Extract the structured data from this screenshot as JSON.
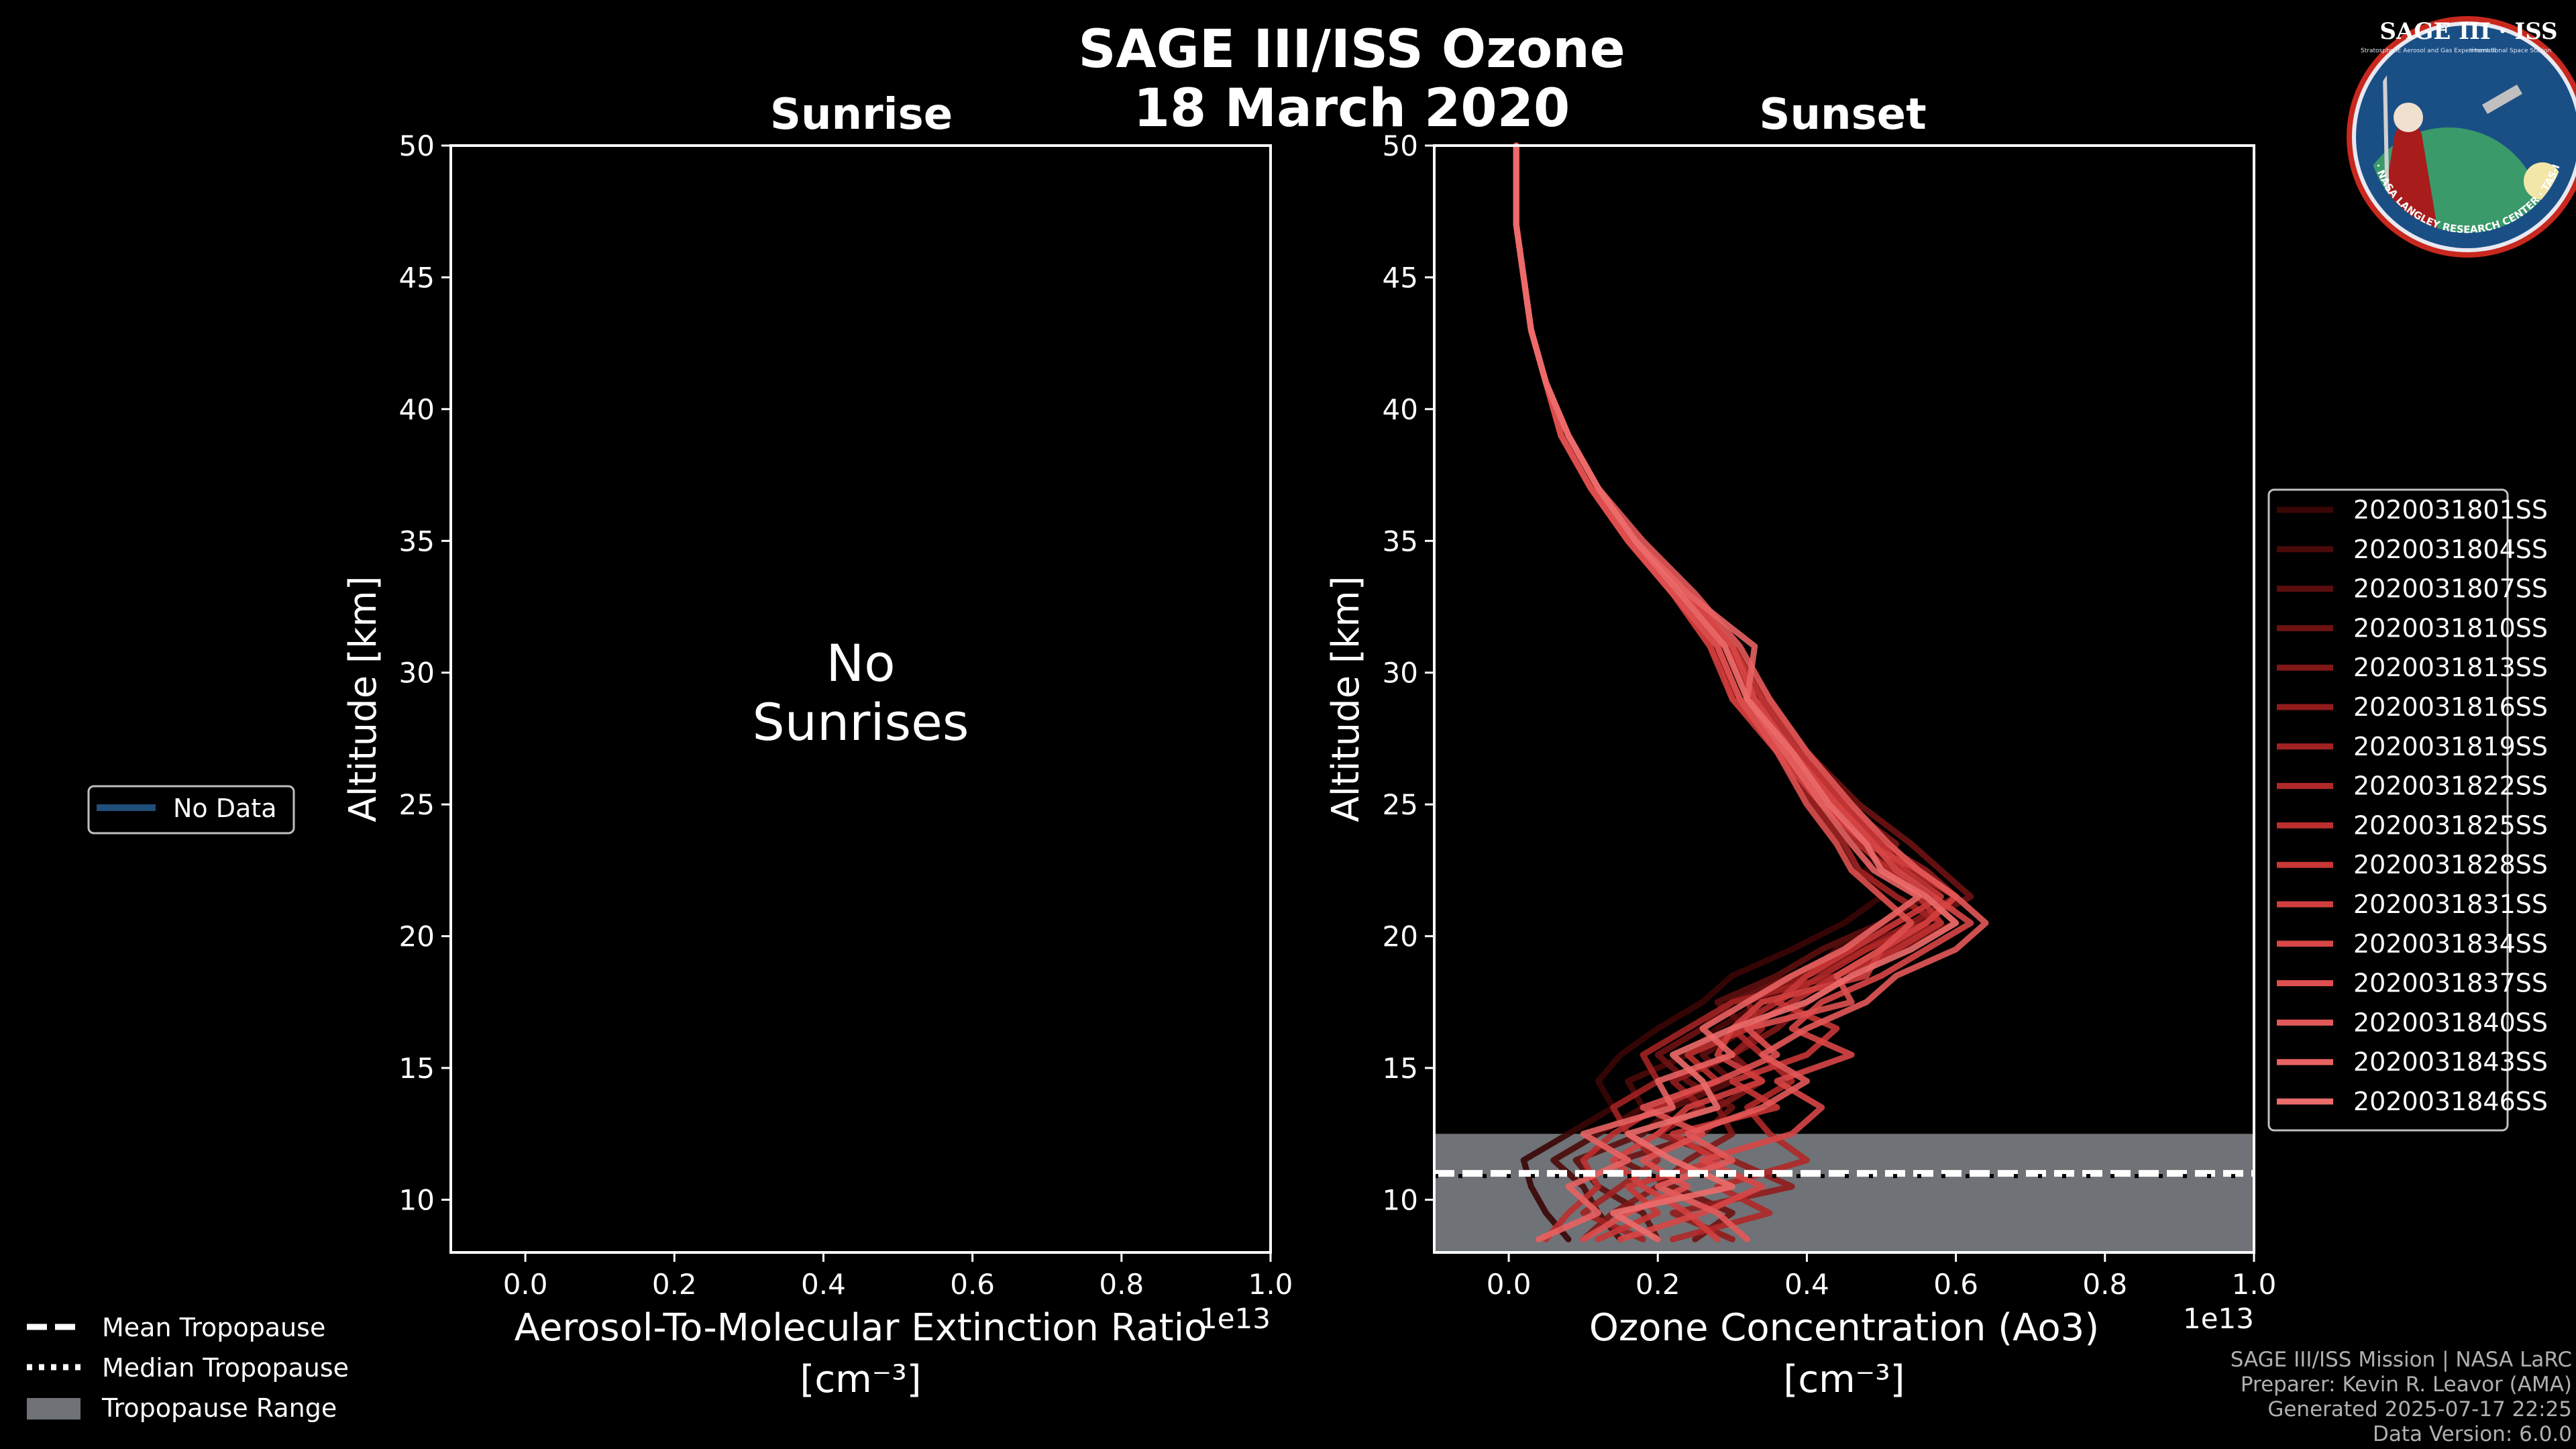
{
  "figure": {
    "title_line1": "SAGE III/ISS Ozone",
    "title_line2": "18 March 2020",
    "footer": [
      "SAGE III/ISS Mission | NASA LaRC",
      "Preparer: Kevin R. Leavor (AMA)",
      "Generated 2025-07-17 22:25",
      "Data Version: 6.0.0"
    ],
    "logo": {
      "text_top": "SAGE III · ISS",
      "text_small_left": "Stratospheric Aerosol and Gas Experiment III",
      "text_small_right": "International Space Station",
      "ring_text": "BALL · NASA LANGLEY RESEARCH CENTER · TAS-I · ESA"
    },
    "left_legend": {
      "no_data": "No Data"
    },
    "bottom_legend": {
      "mean": "Mean Tropopause",
      "median": "Median Tropopause",
      "range": "Tropopause Range"
    }
  },
  "chart_data": [
    {
      "type": "line",
      "panel": "sunrise",
      "title": "Sunrise",
      "xlabel_line1": "Aerosol-To-Molecular Extinction Ratio",
      "xlabel_line2": "[cm⁻³]",
      "ylabel": "Altitude [km]",
      "xlim": [
        -0.1,
        1.0
      ],
      "ylim": [
        8,
        50
      ],
      "xticks": [
        "0.0",
        "0.2",
        "0.4",
        "0.6",
        "0.8",
        "1.0"
      ],
      "xtick_values": [
        0.0,
        0.2,
        0.4,
        0.6,
        0.8,
        1.0
      ],
      "yticks": [
        "10",
        "15",
        "20",
        "25",
        "30",
        "35",
        "40",
        "45",
        "50"
      ],
      "ytick_values": [
        10,
        15,
        20,
        25,
        30,
        35,
        40,
        45,
        50
      ],
      "offset_text": "1e13",
      "message_line1": "No",
      "message_line2": "Sunrises",
      "series": []
    },
    {
      "type": "line",
      "panel": "sunset",
      "title": "Sunset",
      "xlabel_line1": "Ozone Concentration (Ao3)",
      "xlabel_line2": "[cm⁻³]",
      "ylabel": "Altitude [km]",
      "xlim": [
        -0.1,
        1.0
      ],
      "ylim": [
        8,
        50
      ],
      "xticks": [
        "0.0",
        "0.2",
        "0.4",
        "0.6",
        "0.8",
        "1.0"
      ],
      "xtick_values": [
        0.0,
        0.2,
        0.4,
        0.6,
        0.8,
        1.0
      ],
      "yticks": [
        "10",
        "15",
        "20",
        "25",
        "30",
        "35",
        "40",
        "45",
        "50"
      ],
      "ytick_values": [
        10,
        15,
        20,
        25,
        30,
        35,
        40,
        45,
        50
      ],
      "offset_text": "1e13",
      "tropopause": {
        "mean": 11.0,
        "median": 10.9,
        "range": [
          8,
          12.5
        ]
      },
      "profile_altitudes": [
        8.5,
        9.5,
        10.5,
        11.5,
        12.5,
        13.5,
        14.5,
        15.5,
        16.5,
        17.5,
        18.5,
        19.5,
        20.5,
        21.5,
        22.5,
        23.5,
        25,
        27,
        29,
        31,
        33,
        35,
        37,
        39,
        41,
        43,
        45,
        47,
        50
      ],
      "series": [
        {
          "name": "2020031801SS",
          "color": "#3a0606",
          "values": [
            0.08,
            0.05,
            0.03,
            0.02,
            0.08,
            0.14,
            0.12,
            0.15,
            0.2,
            0.26,
            0.3,
            0.38,
            0.45,
            0.5,
            0.48,
            0.5,
            0.42,
            0.38,
            0.33,
            0.28,
            0.22,
            0.16,
            0.11,
            0.07,
            0.05,
            0.03,
            0.02,
            0.01,
            0.01
          ]
        },
        {
          "name": "2020031804SS",
          "color": "#4a0a0a",
          "values": [
            0.15,
            0.12,
            0.1,
            0.06,
            0.12,
            0.18,
            0.16,
            0.24,
            0.28,
            0.34,
            0.4,
            0.44,
            0.52,
            0.58,
            0.55,
            0.5,
            0.46,
            0.4,
            0.34,
            0.3,
            0.23,
            0.17,
            0.12,
            0.08,
            0.05,
            0.03,
            0.02,
            0.01,
            0.01
          ]
        },
        {
          "name": "2020031807SS",
          "color": "#5c0e0e",
          "values": [
            0.2,
            0.18,
            0.12,
            0.09,
            0.18,
            0.22,
            0.3,
            0.26,
            0.32,
            0.28,
            0.36,
            0.42,
            0.5,
            0.56,
            0.52,
            0.48,
            0.44,
            0.38,
            0.32,
            0.29,
            0.22,
            0.16,
            0.11,
            0.07,
            0.05,
            0.03,
            0.02,
            0.01,
            0.01
          ]
        },
        {
          "name": "2020031810SS",
          "color": "#6e1212",
          "values": [
            0.25,
            0.3,
            0.22,
            0.15,
            0.26,
            0.3,
            0.24,
            0.2,
            0.26,
            0.3,
            0.38,
            0.46,
            0.55,
            0.62,
            0.58,
            0.54,
            0.47,
            0.4,
            0.35,
            0.3,
            0.24,
            0.17,
            0.12,
            0.08,
            0.05,
            0.03,
            0.02,
            0.01,
            0.01
          ]
        },
        {
          "name": "2020031813SS",
          "color": "#801717",
          "values": [
            0.1,
            0.14,
            0.2,
            0.24,
            0.3,
            0.28,
            0.34,
            0.3,
            0.36,
            0.4,
            0.46,
            0.52,
            0.6,
            0.56,
            0.5,
            0.52,
            0.45,
            0.39,
            0.31,
            0.27,
            0.22,
            0.16,
            0.11,
            0.07,
            0.05,
            0.03,
            0.02,
            0.01,
            0.01
          ]
        },
        {
          "name": "2020031816SS",
          "color": "#911c1c",
          "values": [
            0.3,
            0.22,
            0.38,
            0.3,
            0.2,
            0.26,
            0.22,
            0.3,
            0.34,
            0.32,
            0.4,
            0.48,
            0.54,
            0.6,
            0.56,
            0.5,
            0.44,
            0.37,
            0.3,
            0.28,
            0.23,
            0.17,
            0.12,
            0.08,
            0.05,
            0.03,
            0.02,
            0.01,
            0.01
          ]
        },
        {
          "name": "2020031819SS",
          "color": "#a12222",
          "values": [
            0.18,
            0.1,
            0.15,
            0.2,
            0.16,
            0.14,
            0.2,
            0.18,
            0.24,
            0.3,
            0.44,
            0.5,
            0.58,
            0.52,
            0.47,
            0.45,
            0.41,
            0.36,
            0.32,
            0.3,
            0.24,
            0.17,
            0.12,
            0.08,
            0.05,
            0.03,
            0.02,
            0.01,
            0.01
          ]
        },
        {
          "name": "2020031822SS",
          "color": "#b02828",
          "values": [
            0.22,
            0.35,
            0.28,
            0.4,
            0.35,
            0.32,
            0.38,
            0.34,
            0.3,
            0.36,
            0.42,
            0.48,
            0.56,
            0.6,
            0.54,
            0.49,
            0.44,
            0.38,
            0.33,
            0.29,
            0.23,
            0.16,
            0.11,
            0.07,
            0.05,
            0.03,
            0.02,
            0.01,
            0.01
          ]
        },
        {
          "name": "2020031825SS",
          "color": "#bd2f2f",
          "values": [
            0.05,
            0.08,
            0.12,
            0.1,
            0.14,
            0.2,
            0.28,
            0.24,
            0.32,
            0.38,
            0.44,
            0.52,
            0.58,
            0.55,
            0.51,
            0.47,
            0.43,
            0.37,
            0.31,
            0.28,
            0.22,
            0.16,
            0.11,
            0.07,
            0.05,
            0.03,
            0.02,
            0.01,
            0.01
          ]
        },
        {
          "name": "2020031828SS",
          "color": "#c83636",
          "values": [
            0.12,
            0.2,
            0.16,
            0.28,
            0.22,
            0.36,
            0.3,
            0.4,
            0.44,
            0.36,
            0.4,
            0.46,
            0.52,
            0.58,
            0.53,
            0.5,
            0.45,
            0.39,
            0.34,
            0.3,
            0.24,
            0.17,
            0.12,
            0.08,
            0.05,
            0.03,
            0.02,
            0.01,
            0.01
          ]
        },
        {
          "name": "2020031831SS",
          "color": "#d13e3e",
          "values": [
            0.28,
            0.24,
            0.18,
            0.14,
            0.2,
            0.24,
            0.34,
            0.28,
            0.3,
            0.34,
            0.48,
            0.5,
            0.56,
            0.6,
            0.55,
            0.48,
            0.42,
            0.36,
            0.3,
            0.27,
            0.22,
            0.16,
            0.11,
            0.07,
            0.05,
            0.03,
            0.02,
            0.01,
            0.01
          ]
        },
        {
          "name": "2020031834SS",
          "color": "#d84646",
          "values": [
            0.15,
            0.26,
            0.34,
            0.26,
            0.38,
            0.42,
            0.36,
            0.46,
            0.38,
            0.42,
            0.5,
            0.56,
            0.62,
            0.57,
            0.52,
            0.49,
            0.44,
            0.38,
            0.33,
            0.3,
            0.24,
            0.17,
            0.12,
            0.08,
            0.05,
            0.03,
            0.02,
            0.01,
            0.01
          ]
        },
        {
          "name": "2020031837SS",
          "color": "#de4f4f",
          "values": [
            0.1,
            0.16,
            0.24,
            0.18,
            0.26,
            0.18,
            0.28,
            0.36,
            0.32,
            0.46,
            0.44,
            0.5,
            0.54,
            0.5,
            0.46,
            0.44,
            0.4,
            0.36,
            0.31,
            0.28,
            0.22,
            0.16,
            0.11,
            0.07,
            0.05,
            0.03,
            0.02,
            0.01,
            0.01
          ]
        },
        {
          "name": "2020031840SS",
          "color": "#e35858",
          "values": [
            0.32,
            0.28,
            0.2,
            0.3,
            0.24,
            0.34,
            0.4,
            0.34,
            0.4,
            0.48,
            0.52,
            0.6,
            0.64,
            0.6,
            0.55,
            0.51,
            0.46,
            0.4,
            0.35,
            0.31,
            0.25,
            0.18,
            0.12,
            0.08,
            0.05,
            0.03,
            0.02,
            0.01,
            0.01
          ]
        },
        {
          "name": "2020031843SS",
          "color": "#e86262",
          "values": [
            0.04,
            0.12,
            0.08,
            0.16,
            0.1,
            0.22,
            0.2,
            0.3,
            0.26,
            0.32,
            0.38,
            0.45,
            0.5,
            0.55,
            0.49,
            0.46,
            0.42,
            0.37,
            0.32,
            0.33,
            0.24,
            0.17,
            0.12,
            0.08,
            0.05,
            0.03,
            0.02,
            0.01,
            0.01
          ]
        },
        {
          "name": "2020031846SS",
          "color": "#ec6b6b",
          "values": [
            0.2,
            0.14,
            0.3,
            0.22,
            0.16,
            0.28,
            0.26,
            0.22,
            0.3,
            0.4,
            0.46,
            0.54,
            0.6,
            0.56,
            0.5,
            0.48,
            0.43,
            0.38,
            0.32,
            0.29,
            0.23,
            0.17,
            0.12,
            0.08,
            0.05,
            0.03,
            0.02,
            0.01,
            0.01
          ]
        }
      ]
    }
  ]
}
